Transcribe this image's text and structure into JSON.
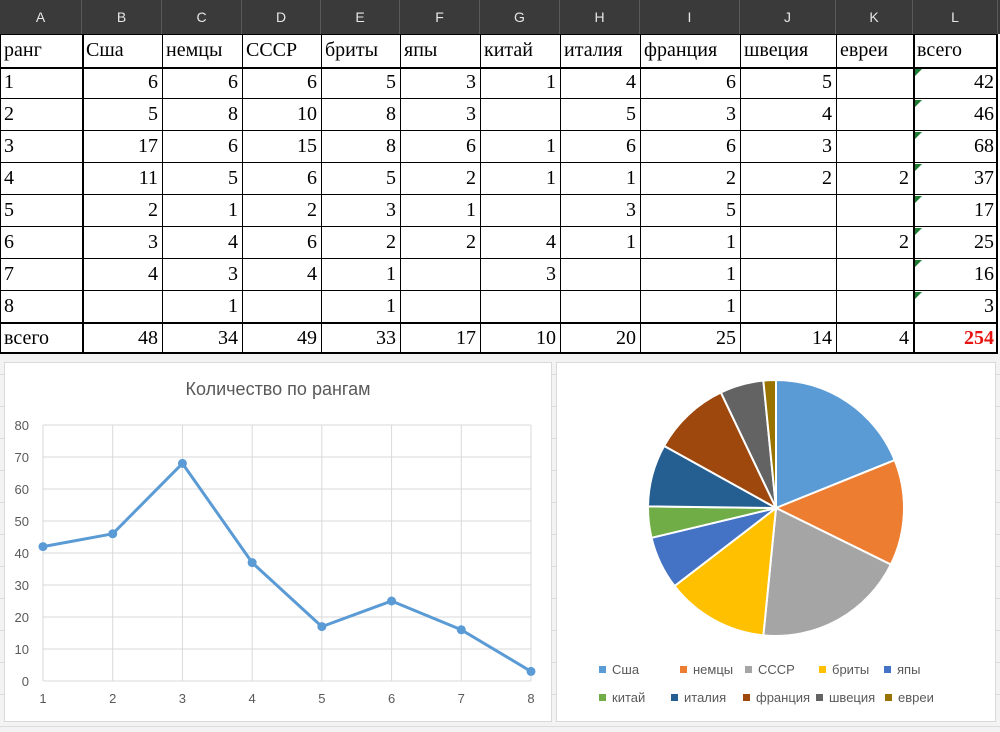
{
  "columns": [
    "A",
    "B",
    "C",
    "D",
    "E",
    "F",
    "G",
    "H",
    "I",
    "J",
    "K",
    "L"
  ],
  "table": {
    "header": [
      "ранг",
      "Сша",
      "немцы",
      "СССР",
      "бриты",
      "япы",
      "китай",
      "италия",
      "франция",
      "швеция",
      "евреи",
      "всего"
    ],
    "rows": [
      [
        "1",
        "6",
        "6",
        "6",
        "5",
        "3",
        "1",
        "4",
        "6",
        "5",
        "",
        "42"
      ],
      [
        "2",
        "5",
        "8",
        "10",
        "8",
        "3",
        "",
        "5",
        "3",
        "4",
        "",
        "46"
      ],
      [
        "3",
        "17",
        "6",
        "15",
        "8",
        "6",
        "1",
        "6",
        "6",
        "3",
        "",
        "68"
      ],
      [
        "4",
        "11",
        "5",
        "6",
        "5",
        "2",
        "1",
        "1",
        "2",
        "2",
        "2",
        "37"
      ],
      [
        "5",
        "2",
        "1",
        "2",
        "3",
        "1",
        "",
        "3",
        "5",
        "",
        "",
        "17"
      ],
      [
        "6",
        "3",
        "4",
        "6",
        "2",
        "2",
        "4",
        "1",
        "1",
        "",
        "2",
        "25"
      ],
      [
        "7",
        "4",
        "3",
        "4",
        "1",
        "",
        "3",
        "",
        "1",
        "",
        "",
        "16"
      ],
      [
        "8",
        "",
        "1",
        "",
        "1",
        "",
        "",
        "",
        "1",
        "",
        "",
        "3"
      ]
    ],
    "totals": [
      "всего",
      "48",
      "34",
      "49",
      "33",
      "17",
      "10",
      "20",
      "25",
      "14",
      "4",
      "254"
    ]
  },
  "chart_data": [
    {
      "type": "line",
      "title": "Количество по рангам",
      "x": [
        "1",
        "2",
        "3",
        "4",
        "5",
        "6",
        "7",
        "8"
      ],
      "series": [
        {
          "values": [
            42,
            46,
            68,
            37,
            17,
            25,
            16,
            3
          ],
          "color": "#5b9bd5"
        }
      ],
      "ylim": [
        0,
        80
      ],
      "yticks": [
        0,
        10,
        20,
        30,
        40,
        50,
        60,
        70,
        80
      ],
      "grid": true,
      "legend": "none"
    },
    {
      "type": "pie",
      "categories": [
        "Сша",
        "немцы",
        "СССР",
        "бриты",
        "япы",
        "китай",
        "италия",
        "франция",
        "швеция",
        "евреи"
      ],
      "values": [
        48,
        34,
        49,
        33,
        17,
        10,
        20,
        25,
        14,
        4
      ],
      "colors": [
        "#5b9bd5",
        "#ed7d31",
        "#a5a5a5",
        "#ffc000",
        "#4472c4",
        "#70ad47",
        "#255e91",
        "#9e480e",
        "#636363",
        "#997300"
      ],
      "legend": "bottom"
    }
  ]
}
